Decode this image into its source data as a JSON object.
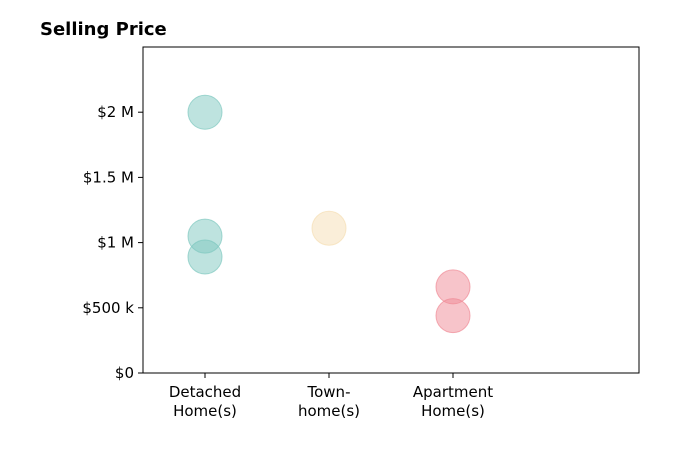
{
  "chart_data": {
    "type": "scatter",
    "title": "Selling Price",
    "xlabel": "",
    "ylabel": "",
    "categories": [
      [
        "Detached",
        "Home(s)"
      ],
      [
        "Town-",
        "home(s)"
      ],
      [
        "Apartment",
        "Home(s)"
      ]
    ],
    "y_ticks": [
      {
        "value": 0,
        "label": "$0"
      },
      {
        "value": 500000,
        "label": "$500 k"
      },
      {
        "value": 1000000,
        "label": "$1 M"
      },
      {
        "value": 1500000,
        "label": "$1.5 M"
      },
      {
        "value": 2000000,
        "label": "$2 M"
      }
    ],
    "ylim": [
      0,
      2500000
    ],
    "xlim": [
      -0.5,
      3.5
    ],
    "grid": false,
    "legend": "none",
    "series": [
      {
        "category_index": 0,
        "color": "#7ec8bf",
        "values": [
          2000000,
          1050000,
          890000
        ]
      },
      {
        "category_index": 1,
        "color": "#f5deb3",
        "values": [
          1110000
        ]
      },
      {
        "category_index": 2,
        "color": "#f08a96",
        "values": [
          660000,
          440000
        ]
      }
    ],
    "marker_opacity": 0.5
  }
}
